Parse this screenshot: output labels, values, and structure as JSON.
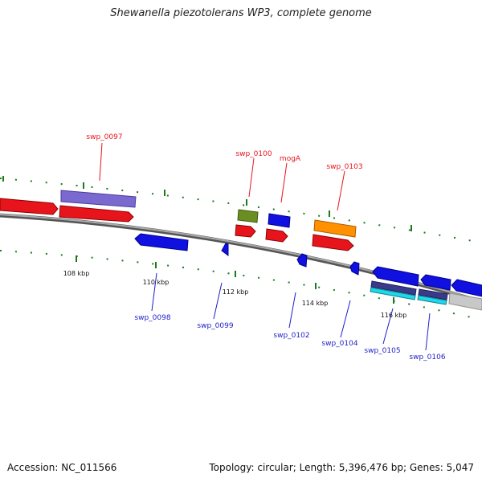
{
  "title": "Shewanella piezotolerans WP3, complete genome",
  "footer": {
    "accession": "Accession: NC_011566",
    "summary": "Topology: circular; Length: 5,396,476 bp; Genes: 5,047"
  },
  "colors": {
    "forward_label": "#e8141c",
    "reverse_label": "#1e1ec8",
    "tick": "#1a7a1a",
    "backbone": "#8a8a8a"
  },
  "scale_labels": [
    "108 kbp",
    "110 kbp",
    "112 kbp",
    "114 kbp",
    "116 kbp"
  ],
  "genes_forward": [
    {
      "label": "swp_0097"
    },
    {
      "label": "swp_0100"
    },
    {
      "label": "mogA"
    },
    {
      "label": "swp_0103"
    }
  ],
  "genes_reverse": [
    {
      "label": "swp_0098"
    },
    {
      "label": "swp_0099"
    },
    {
      "label": "swp_0102"
    },
    {
      "label": "swp_0104"
    },
    {
      "label": "swp_0105"
    },
    {
      "label": "swp_0106"
    }
  ]
}
